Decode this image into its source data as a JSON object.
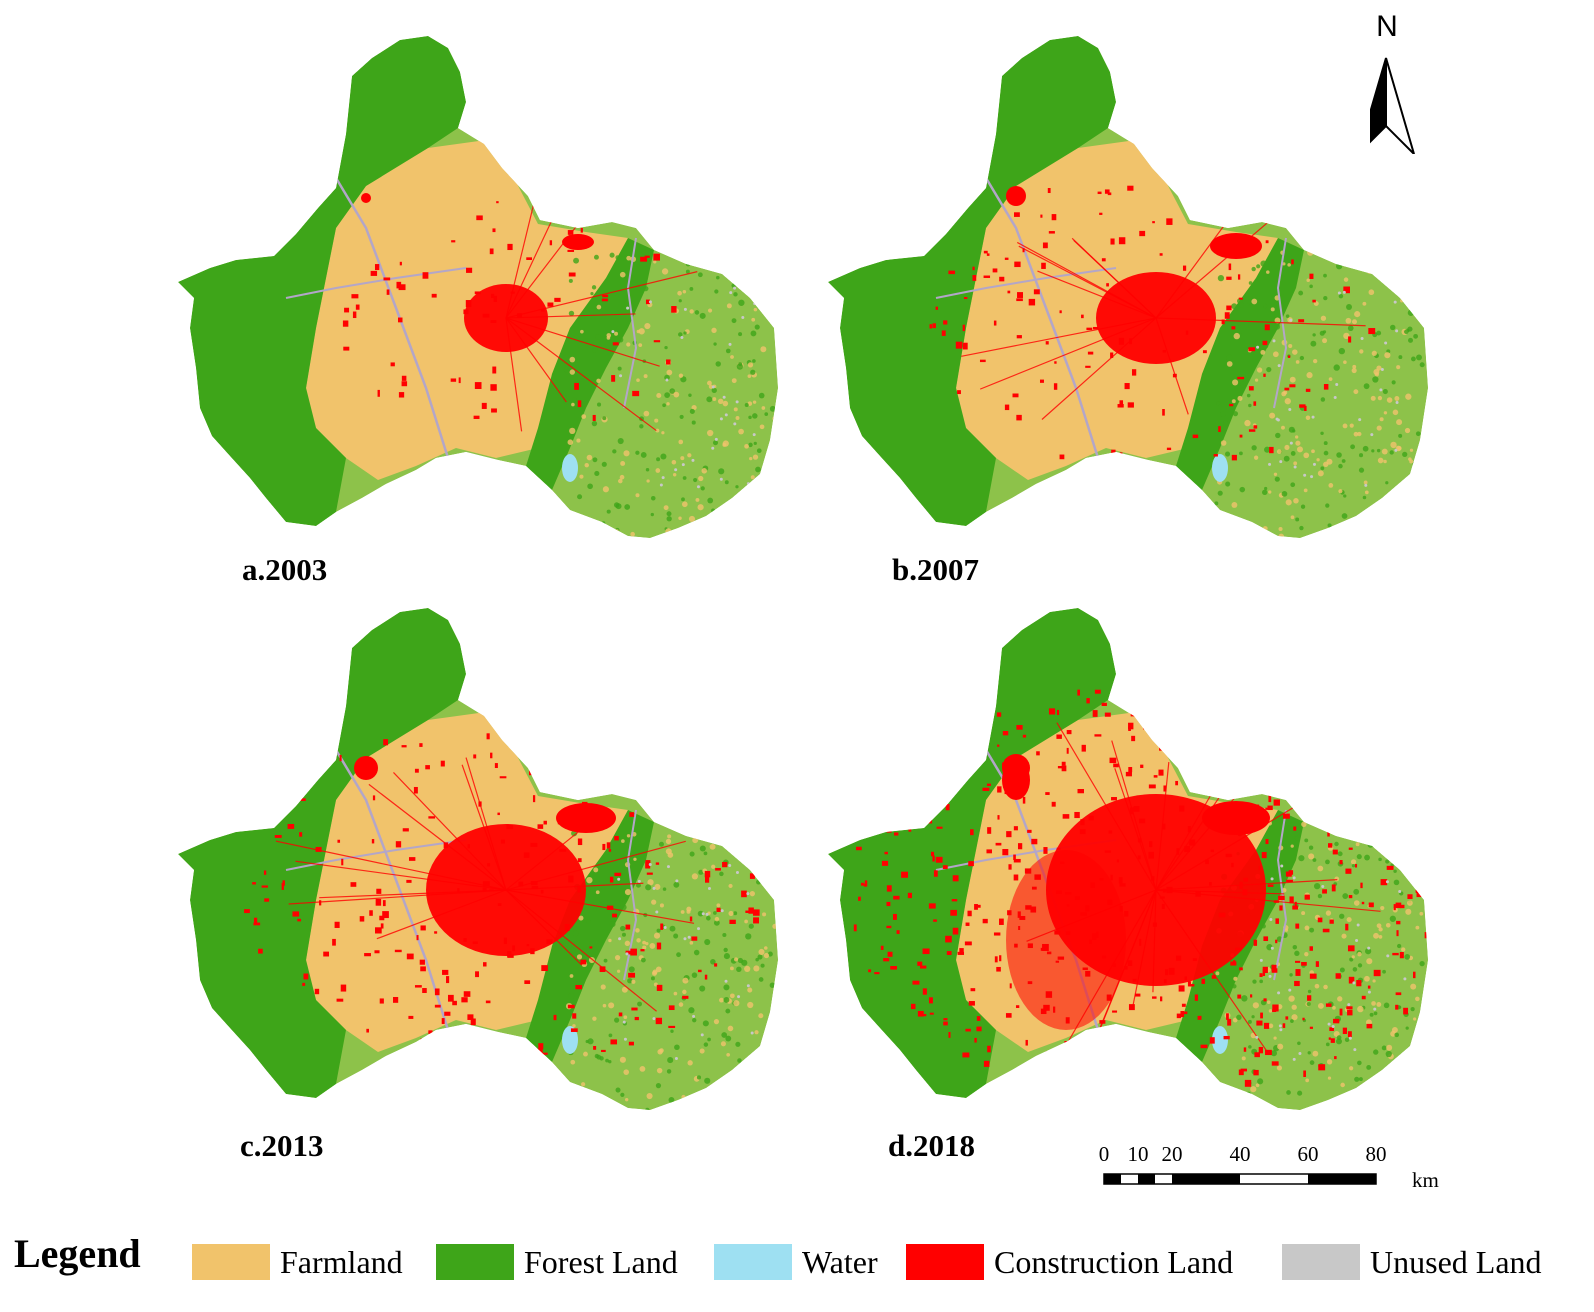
{
  "panels": [
    {
      "label": "a.2003",
      "construction_level": 1
    },
    {
      "label": "b.2007",
      "construction_level": 2
    },
    {
      "label": "c.2013",
      "construction_level": 3
    },
    {
      "label": "d.2018",
      "construction_level": 4
    }
  ],
  "north_arrow": {
    "letter": "N"
  },
  "scale_bar": {
    "ticks": [
      "0",
      "10",
      "20",
      "40",
      "60",
      "80"
    ],
    "unit": "km"
  },
  "legend": {
    "title": "Legend",
    "items": [
      {
        "label": "Farmland",
        "color": "#f1c36b"
      },
      {
        "label": "Forest Land",
        "color": "#3ea519"
      },
      {
        "label": "Water",
        "color": "#9ee0f2"
      },
      {
        "label": "Construction Land",
        "color": "#ff0000"
      },
      {
        "label": "Unused Land",
        "color": "#c8c8c8"
      }
    ]
  },
  "colors": {
    "mixed_green": "#8dc24a",
    "river": "#b3a6c8"
  }
}
